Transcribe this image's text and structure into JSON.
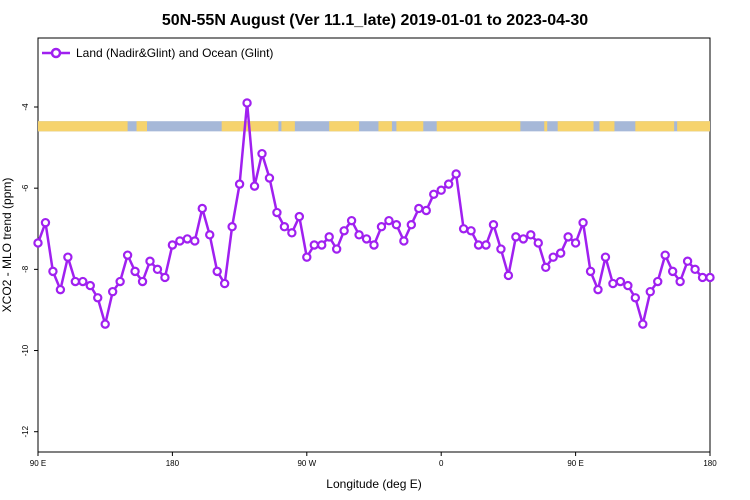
{
  "chart_data": {
    "type": "line",
    "title": "50N-55N August (Ver 11.1_late)   2019-01-01 to 2023-04-30",
    "xlabel": "Longitude (deg E)",
    "ylabel": "XCO2 - MLO trend (ppm)",
    "x_ticks": [
      {
        "value": 90,
        "label": "90 E"
      },
      {
        "value": 180,
        "label": "180"
      },
      {
        "value": 270,
        "label": "90 W"
      },
      {
        "value": 360,
        "label": "0"
      },
      {
        "value": 450,
        "label": "90 E"
      },
      {
        "value": 540,
        "label": "180"
      }
    ],
    "y_ticks": [
      {
        "value": -4,
        "label": "-4"
      },
      {
        "value": -6,
        "label": "-6"
      },
      {
        "value": -8,
        "label": "-8"
      },
      {
        "value": -10,
        "label": "-10"
      },
      {
        "value": -12,
        "label": "-12"
      }
    ],
    "xlim": [
      90,
      540
    ],
    "ylim": [
      -12.5,
      -2.3
    ],
    "grid": false,
    "legend_position": "top-left",
    "colors": {
      "line": "#a020f0",
      "land": "#f6d36d",
      "ocean": "#a6b8d8"
    },
    "land_ocean_strip": {
      "y_range": [
        -4.6,
        -4.35
      ],
      "land_intervals": [
        [
          90,
          150
        ],
        [
          156,
          163
        ],
        [
          213,
          251
        ],
        [
          253,
          262
        ],
        [
          285,
          305
        ],
        [
          318,
          327
        ],
        [
          330,
          348
        ],
        [
          357,
          413
        ],
        [
          429,
          431
        ],
        [
          438,
          462
        ],
        [
          466,
          476
        ],
        [
          490,
          516
        ],
        [
          518,
          540
        ]
      ]
    },
    "series": [
      {
        "name": "Land (Nadir&Glint) and Ocean (Glint)",
        "x": [
          90,
          95,
          100,
          105,
          110,
          115,
          120,
          125,
          130,
          135,
          140,
          145,
          150,
          155,
          160,
          165,
          170,
          175,
          180,
          185,
          190,
          195,
          200,
          205,
          210,
          215,
          220,
          225,
          230,
          235,
          240,
          245,
          250,
          255,
          260,
          265,
          270,
          275,
          280,
          285,
          290,
          295,
          300,
          305,
          310,
          315,
          320,
          325,
          330,
          335,
          340,
          345,
          350,
          355,
          360,
          365,
          370,
          375,
          380,
          385,
          390,
          395,
          400,
          405,
          410,
          415,
          420,
          425,
          430,
          435,
          440,
          445,
          450,
          455,
          460,
          465,
          470,
          475,
          480,
          485,
          490,
          495,
          500,
          505,
          510,
          515,
          520,
          525,
          530,
          535,
          540
        ],
        "y": [
          -7.35,
          -6.85,
          -8.05,
          -8.5,
          -7.7,
          -8.3,
          -8.3,
          -8.4,
          -8.7,
          -9.35,
          -8.55,
          -8.3,
          -7.65,
          -8.05,
          -8.3,
          -7.8,
          -8.0,
          -8.2,
          -7.4,
          -7.3,
          -7.25,
          -7.3,
          -6.5,
          -7.15,
          -8.05,
          -8.35,
          -6.95,
          -5.9,
          -3.9,
          -5.95,
          -5.15,
          -5.75,
          -6.6,
          -6.95,
          -7.1,
          -6.7,
          -7.7,
          -7.4,
          -7.4,
          -7.2,
          -7.5,
          -7.05,
          -6.8,
          -7.15,
          -7.25,
          -7.4,
          -6.95,
          -6.8,
          -6.9,
          -7.3,
          -6.9,
          -6.5,
          -6.55,
          -6.15,
          -6.05,
          -5.9,
          -5.65,
          -7.0,
          -7.05,
          -7.4,
          -7.4,
          -6.9,
          -7.5,
          -8.15,
          -7.2,
          -7.25,
          -7.15,
          -7.35,
          -7.95,
          -7.7,
          -7.6,
          -7.2,
          -7.35,
          -6.85,
          -8.05,
          -8.5,
          -7.7,
          -8.35,
          -8.3,
          -8.4,
          -8.7,
          -9.35,
          -8.55,
          -8.3,
          -7.65,
          -8.05,
          -8.3,
          -7.8,
          -8.0,
          -8.2,
          -8.2
        ]
      }
    ]
  }
}
